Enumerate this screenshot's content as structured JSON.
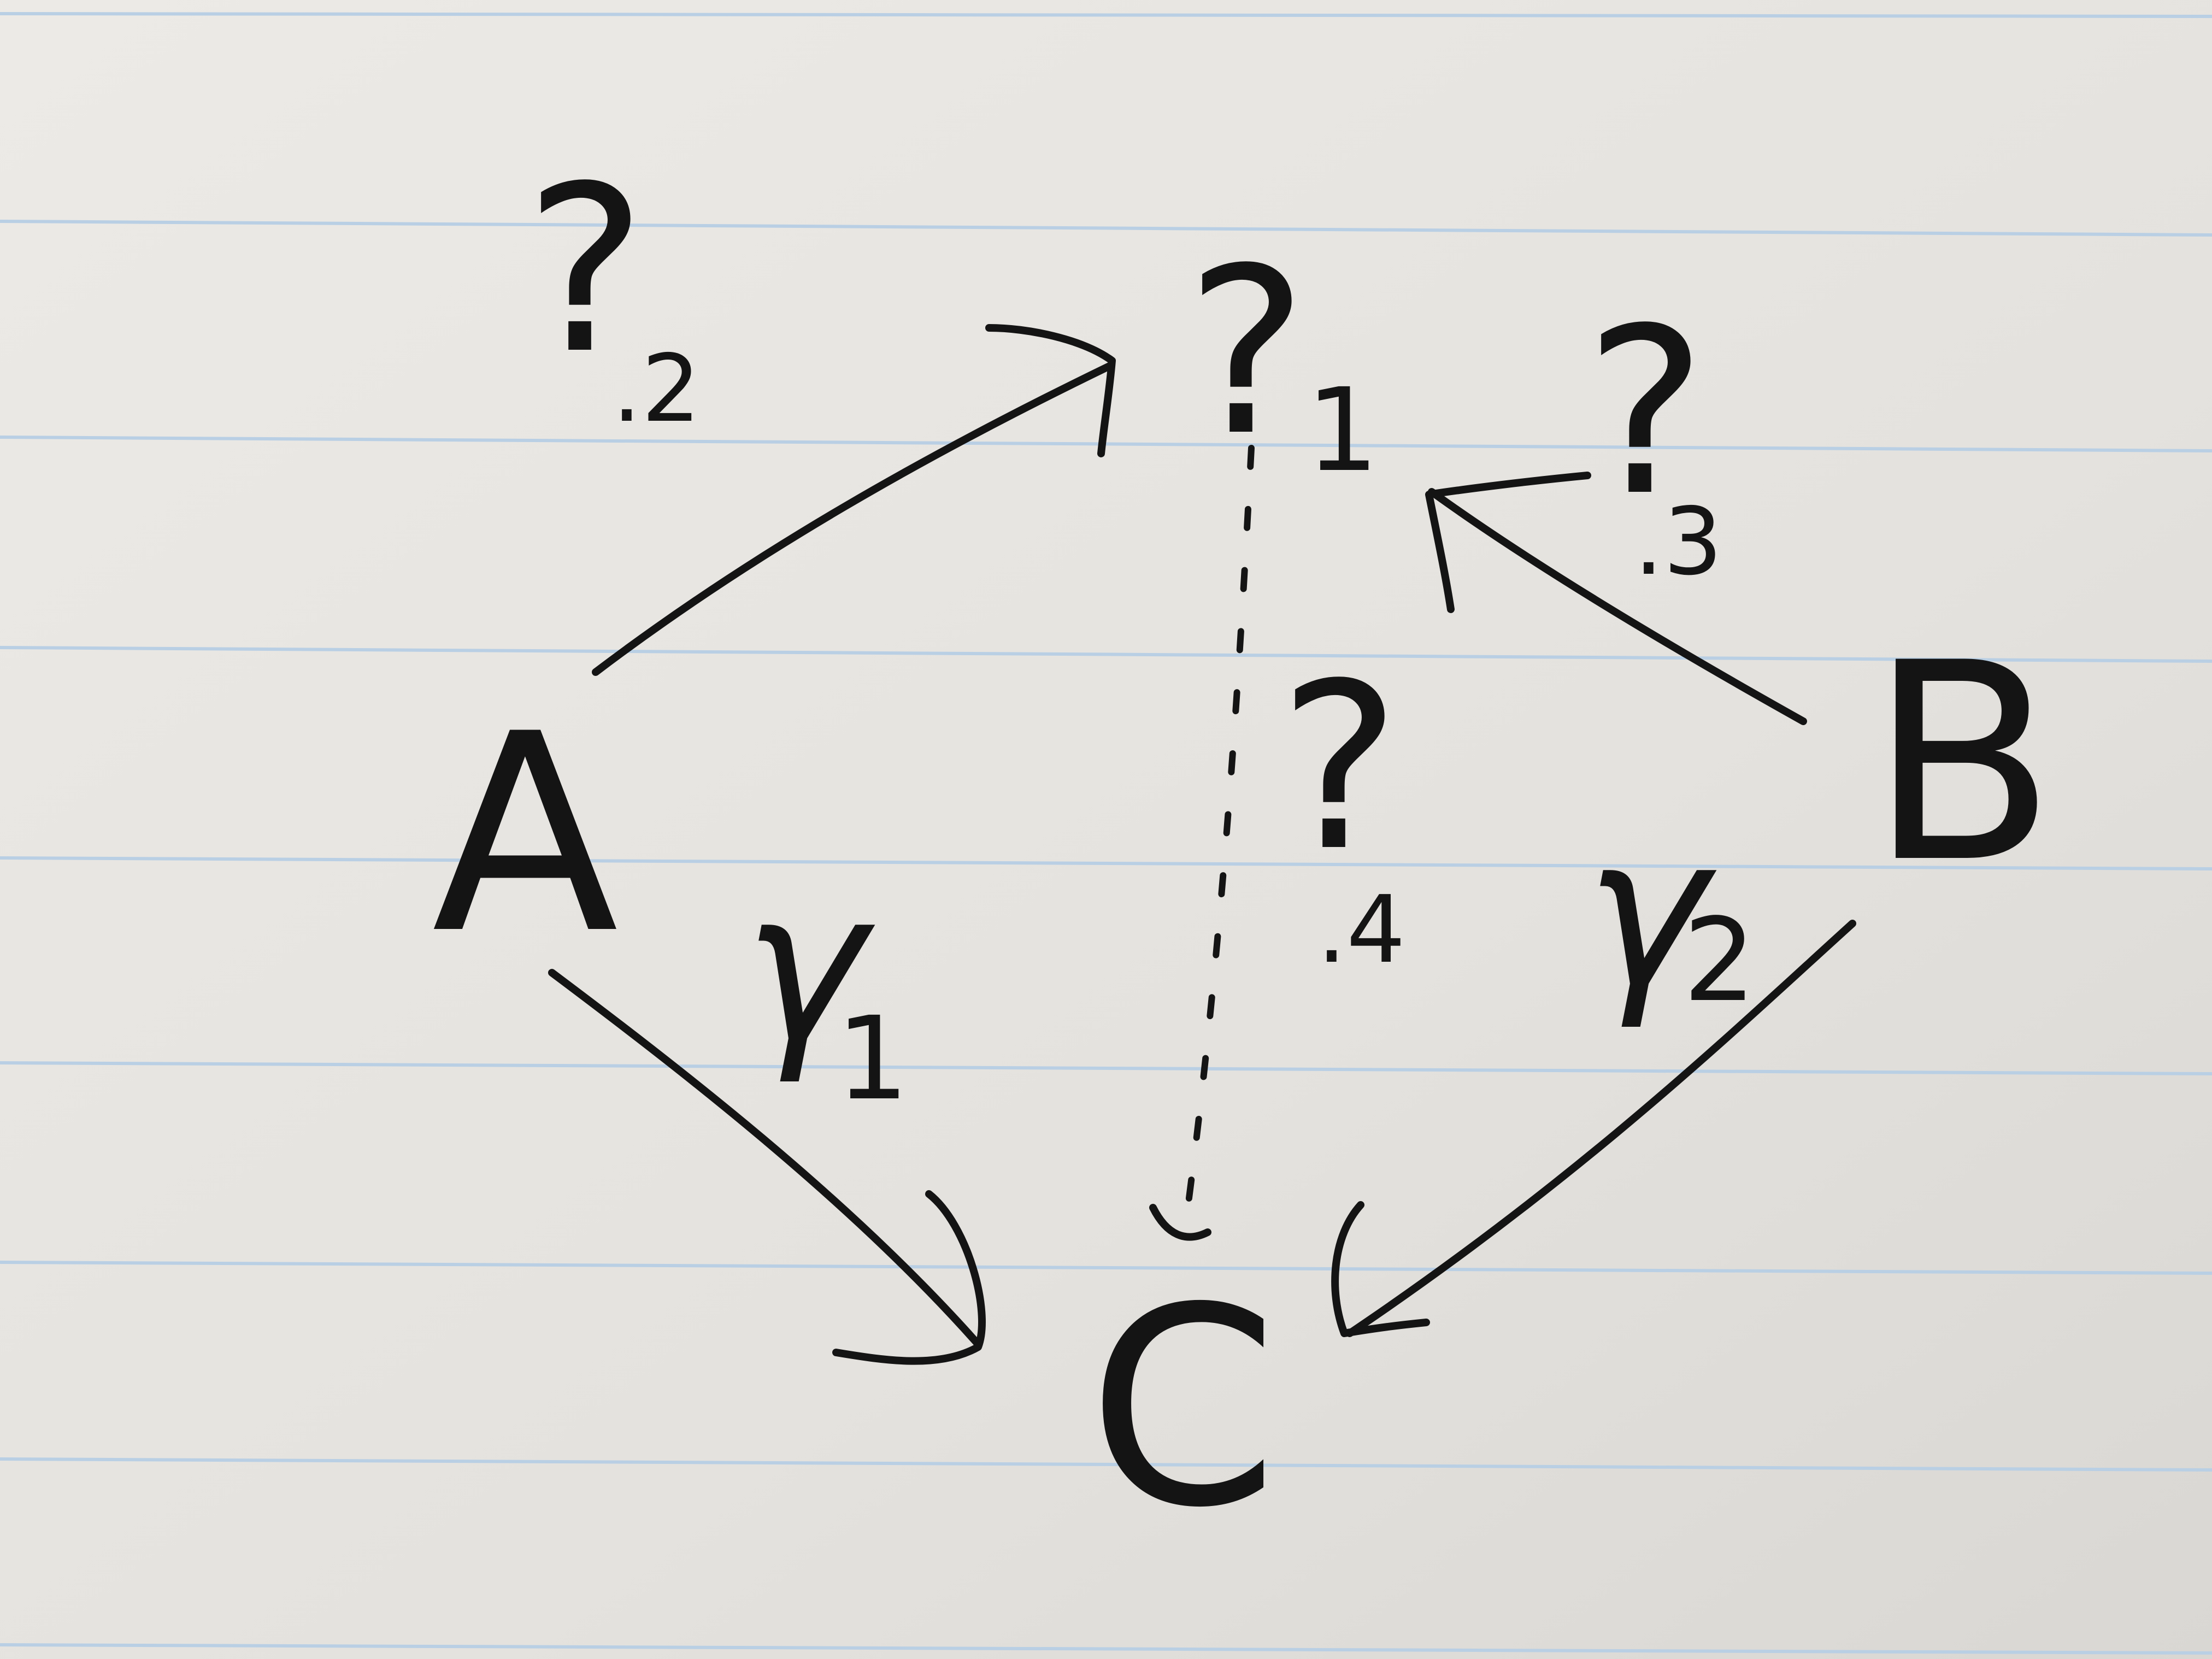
{
  "nodes": {
    "a": "A",
    "b": "B",
    "c": "C",
    "top": "?"
  },
  "edges": {
    "a_to_top": {
      "symbol": "?",
      "index": ".2"
    },
    "b_to_top": {
      "symbol": "?",
      "index": ".3"
    },
    "top_to_c": {
      "symbol": "?",
      "index": ".4"
    },
    "a_to_c": {
      "symbol": "γ",
      "index": "1"
    },
    "b_to_c": {
      "symbol": "γ",
      "index": "2"
    }
  },
  "top_index": "1",
  "colors": {
    "ink": "#141414",
    "paper": "#e6e4e0",
    "rule_line": "#b9cfe4"
  }
}
